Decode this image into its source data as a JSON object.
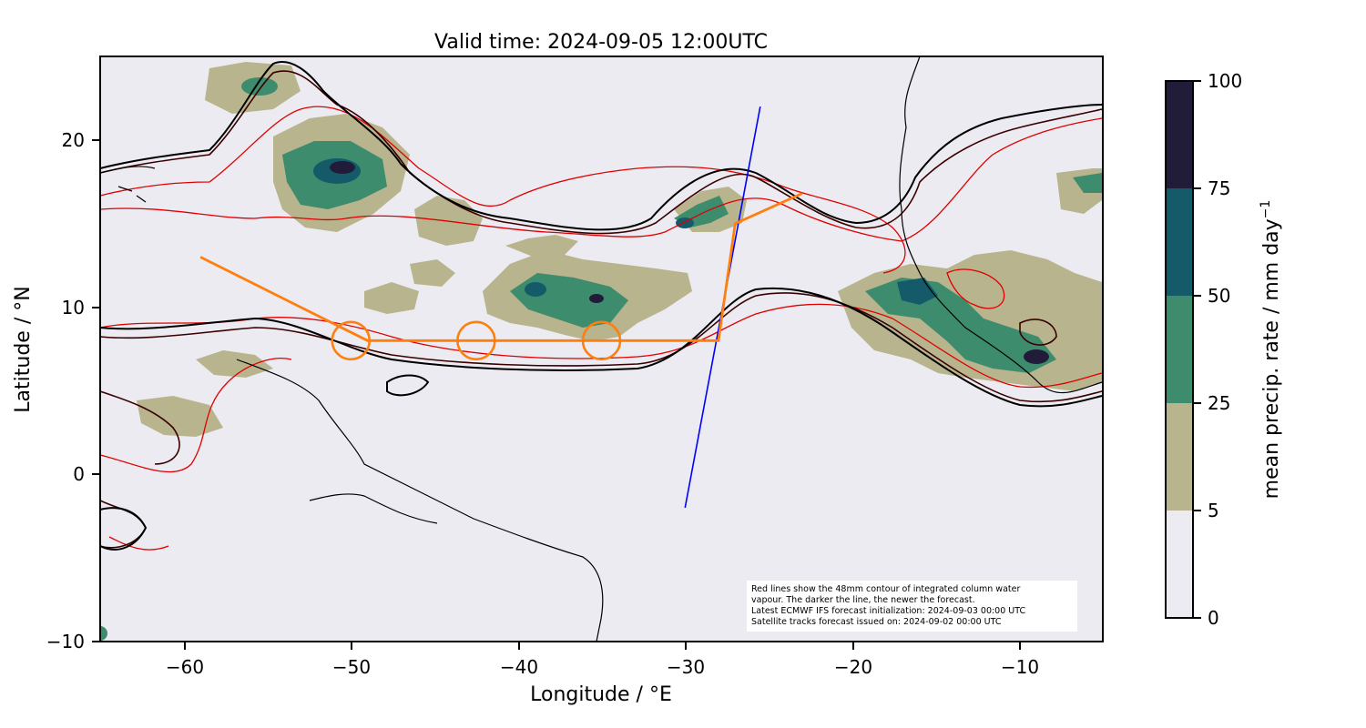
{
  "title": "Valid time: 2024-09-05 12:00UTC",
  "xlabel": "Longitude / °E",
  "ylabel": "Latitude / °N",
  "xticks": [
    "−60",
    "−50",
    "−40",
    "−30",
    "−20",
    "−10"
  ],
  "yticks": [
    "20",
    "10",
    "0",
    "−10"
  ],
  "colorbar": {
    "label": "mean precip. rate / mm day",
    "label_sup": "−1",
    "ticks": [
      "100",
      "75",
      "50",
      "25",
      "5",
      "0"
    ],
    "colors": [
      "#ECEBF1",
      "#B8B48D",
      "#3E8C6E",
      "#145A68",
      "#211C39"
    ]
  },
  "annotation": [
    "Red lines show the 48mm contour of integrated column water",
    "vapour. The darker the line, the newer the forecast.",
    "Latest ECMWF IFS forecast initialization: 2024-09-03 00:00 UTC",
    "Satellite tracks forecast issued on: 2024-09-02 00:00 UTC"
  ],
  "map": {
    "lon_range": [
      -65,
      -5
    ],
    "lat_range": [
      -10,
      25
    ],
    "background": "#ECEBF1",
    "flight_track": {
      "color": "#FF7F0E",
      "points": [
        [
          -59,
          13
        ],
        [
          -53,
          10
        ],
        [
          -49,
          8
        ],
        [
          -28,
          8
        ],
        [
          -27,
          15
        ],
        [
          -23,
          16.8
        ]
      ]
    },
    "circles": [
      [
        -50,
        8
      ],
      [
        -42.5,
        8
      ],
      [
        -35,
        8
      ]
    ],
    "satellite_track": {
      "color": "#0000FF",
      "points": [
        [
          -30,
          -2
        ],
        [
          -25.5,
          22
        ]
      ]
    }
  }
}
